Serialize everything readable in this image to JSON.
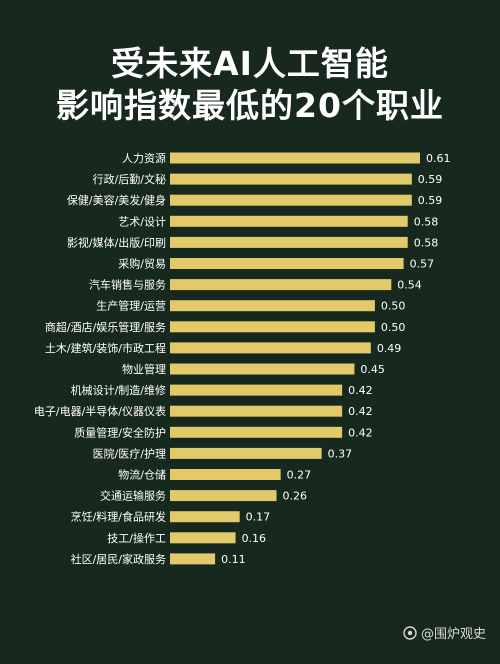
{
  "title_line1": "受未来AI人工智能",
  "title_line2": "影响指数最低的20个职业",
  "watermark": "@围炉观史",
  "colors": {
    "background": "#17291f",
    "bar": "#e2c96a",
    "text": "#ffffff"
  },
  "chart_data": {
    "type": "bar",
    "orientation": "horizontal",
    "categories": [
      "人力资源",
      "行政/后勤/文秘",
      "保健/美容/美发/健身",
      "艺术/设计",
      "影视/媒体/出版/印刷",
      "采购/贸易",
      "汽车销售与服务",
      "生产管理/运营",
      "商超/酒店/娱乐管理/服务",
      "土木/建筑/装饰/市政工程",
      "物业管理",
      "机械设计/制造/维修",
      "电子/电器/半导体/仪器仪表",
      "质量管理/安全防护",
      "医院/医疗/护理",
      "物流/仓储",
      "交通运输服务",
      "烹饪/料理/食品研发",
      "技工/操作工",
      "社区/居民/家政服务"
    ],
    "values": [
      0.61,
      0.59,
      0.59,
      0.58,
      0.58,
      0.57,
      0.54,
      0.5,
      0.5,
      0.49,
      0.45,
      0.42,
      0.42,
      0.42,
      0.37,
      0.27,
      0.26,
      0.17,
      0.16,
      0.11
    ],
    "value_labels": [
      "0.61",
      "0.59",
      "0.59",
      "0.58",
      "0.58",
      "0.57",
      "0.54",
      "0.50",
      "0.50",
      "0.49",
      "0.45",
      "0.42",
      "0.42",
      "0.42",
      "0.37",
      "0.27",
      "0.26",
      "0.17",
      "0.16",
      "0.11"
    ],
    "xlim": [
      0,
      0.61
    ],
    "grid": false,
    "legend": "none"
  }
}
